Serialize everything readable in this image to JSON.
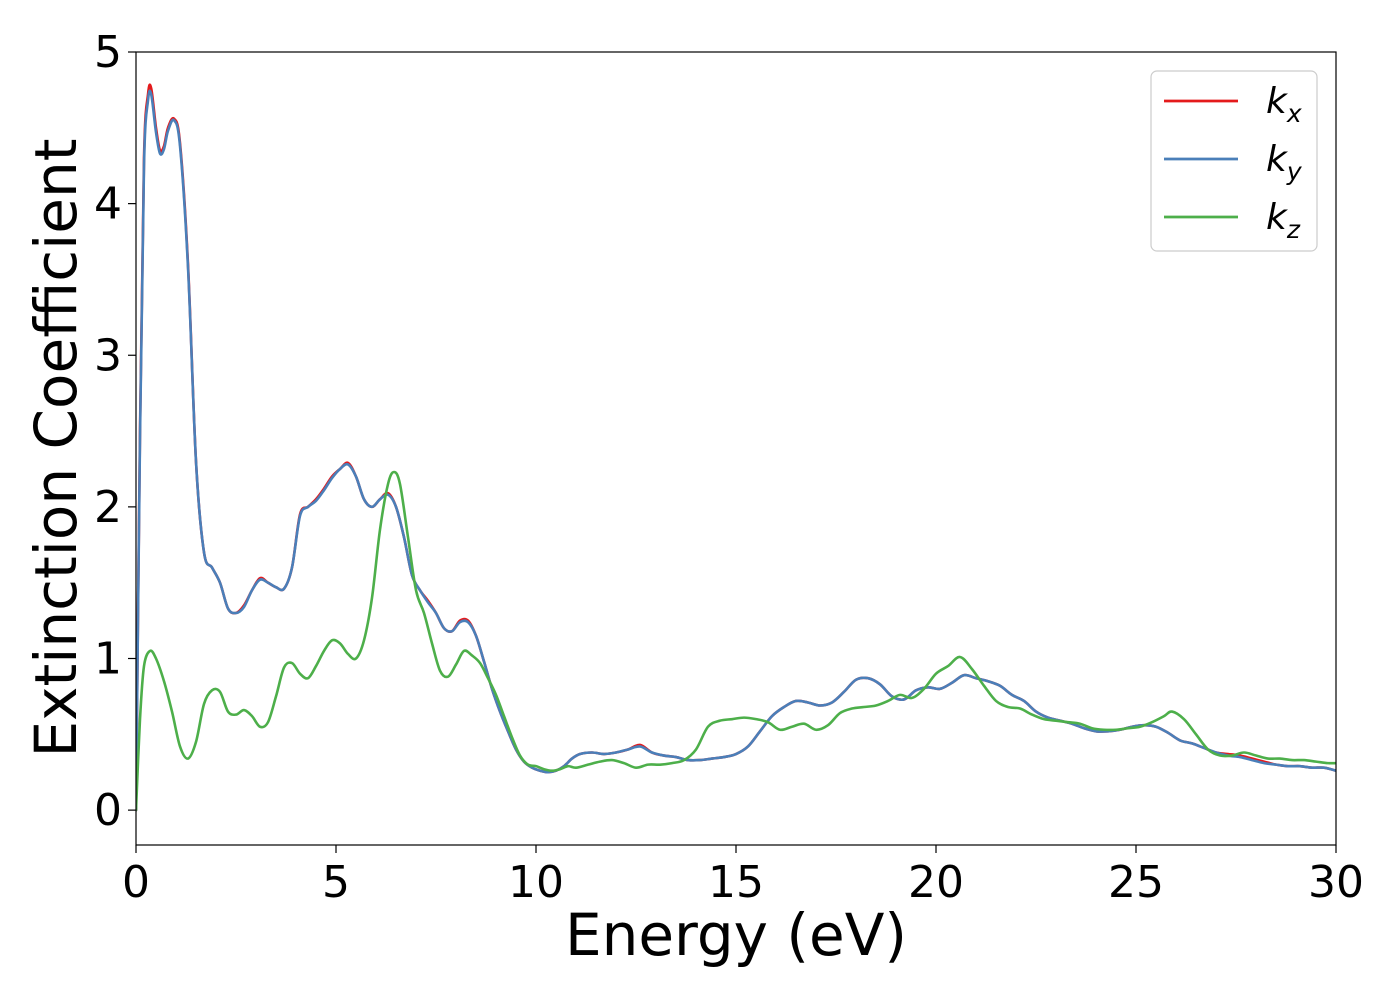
{
  "chart_data": {
    "type": "line",
    "xlabel": "Energy (eV)",
    "ylabel": "Extinction Coefficient",
    "xlim": [
      0,
      30
    ],
    "ylim": [
      -0.23,
      5.0
    ],
    "xticks": [
      0,
      5,
      10,
      15,
      20,
      25,
      30
    ],
    "yticks": [
      0,
      1,
      2,
      3,
      4,
      5
    ],
    "xtick_labels": [
      "0",
      "5",
      "10",
      "15",
      "20",
      "25",
      "30"
    ],
    "ytick_labels": [
      "0",
      "1",
      "2",
      "3",
      "4",
      "5"
    ],
    "grid": false,
    "legend_position": "top-right",
    "series": [
      {
        "name": "k_x",
        "label_base": "k",
        "label_sub": "x",
        "color": "#e41a1c",
        "x": [
          0,
          0.1,
          0.2,
          0.3,
          0.38,
          0.5,
          0.6,
          0.7,
          0.8,
          0.95,
          1.1,
          1.3,
          1.5,
          1.7,
          1.9,
          2.1,
          2.3,
          2.5,
          2.7,
          2.9,
          3.1,
          3.3,
          3.5,
          3.7,
          3.9,
          4.1,
          4.3,
          4.5,
          4.7,
          4.9,
          5.1,
          5.3,
          5.5,
          5.7,
          5.9,
          6.1,
          6.3,
          6.5,
          6.7,
          6.9,
          7.1,
          7.3,
          7.5,
          7.7,
          7.9,
          8.1,
          8.3,
          8.5,
          8.7,
          8.9,
          9.1,
          9.3,
          9.5,
          9.7,
          9.9,
          10.1,
          10.3,
          10.5,
          10.7,
          10.9,
          11.1,
          11.4,
          11.7,
          12.0,
          12.3,
          12.6,
          12.9,
          13.2,
          13.5,
          13.8,
          14.1,
          14.4,
          14.7,
          15.0,
          15.3,
          15.6,
          15.9,
          16.2,
          16.5,
          16.8,
          17.1,
          17.4,
          17.7,
          18.0,
          18.3,
          18.6,
          18.9,
          19.2,
          19.5,
          19.8,
          20.1,
          20.4,
          20.7,
          21.0,
          21.3,
          21.6,
          21.9,
          22.2,
          22.5,
          22.8,
          23.1,
          23.4,
          23.7,
          24.0,
          24.3,
          24.6,
          24.9,
          25.2,
          25.5,
          25.8,
          26.1,
          26.4,
          26.7,
          27.0,
          27.3,
          27.6,
          27.9,
          28.2,
          28.5,
          28.8,
          29.1,
          29.4,
          29.7,
          30.0
        ],
        "values": [
          0.0,
          2.5,
          4.3,
          4.72,
          4.76,
          4.5,
          4.35,
          4.38,
          4.5,
          4.56,
          4.4,
          3.6,
          2.3,
          1.7,
          1.6,
          1.5,
          1.33,
          1.3,
          1.35,
          1.45,
          1.53,
          1.5,
          1.47,
          1.46,
          1.6,
          1.95,
          2.0,
          2.05,
          2.12,
          2.2,
          2.25,
          2.29,
          2.2,
          2.05,
          2.0,
          2.05,
          2.09,
          2.0,
          1.8,
          1.55,
          1.45,
          1.38,
          1.3,
          1.2,
          1.18,
          1.25,
          1.25,
          1.15,
          0.98,
          0.8,
          0.65,
          0.52,
          0.4,
          0.32,
          0.28,
          0.26,
          0.25,
          0.26,
          0.29,
          0.34,
          0.37,
          0.38,
          0.37,
          0.38,
          0.4,
          0.43,
          0.38,
          0.36,
          0.35,
          0.33,
          0.33,
          0.34,
          0.35,
          0.37,
          0.42,
          0.52,
          0.62,
          0.68,
          0.72,
          0.71,
          0.69,
          0.71,
          0.78,
          0.86,
          0.87,
          0.83,
          0.75,
          0.73,
          0.79,
          0.81,
          0.8,
          0.84,
          0.89,
          0.87,
          0.85,
          0.82,
          0.76,
          0.72,
          0.65,
          0.61,
          0.59,
          0.57,
          0.54,
          0.52,
          0.52,
          0.53,
          0.55,
          0.56,
          0.55,
          0.51,
          0.46,
          0.44,
          0.41,
          0.38,
          0.37,
          0.36,
          0.34,
          0.32,
          0.3,
          0.29,
          0.29,
          0.28,
          0.28,
          0.26
        ]
      },
      {
        "name": "k_y",
        "label_base": "k",
        "label_sub": "y",
        "color": "#4a7fb9",
        "x": [
          0,
          0.1,
          0.2,
          0.3,
          0.38,
          0.5,
          0.6,
          0.7,
          0.8,
          0.95,
          1.1,
          1.3,
          1.5,
          1.7,
          1.9,
          2.1,
          2.3,
          2.5,
          2.7,
          2.9,
          3.1,
          3.3,
          3.5,
          3.7,
          3.9,
          4.1,
          4.3,
          4.5,
          4.7,
          4.9,
          5.1,
          5.3,
          5.5,
          5.7,
          5.9,
          6.1,
          6.3,
          6.5,
          6.7,
          6.9,
          7.1,
          7.3,
          7.5,
          7.7,
          7.9,
          8.1,
          8.3,
          8.5,
          8.7,
          8.9,
          9.1,
          9.3,
          9.5,
          9.7,
          9.9,
          10.1,
          10.3,
          10.5,
          10.7,
          10.9,
          11.1,
          11.4,
          11.7,
          12.0,
          12.3,
          12.6,
          12.9,
          13.2,
          13.5,
          13.8,
          14.1,
          14.4,
          14.7,
          15.0,
          15.3,
          15.6,
          15.9,
          16.2,
          16.5,
          16.8,
          17.1,
          17.4,
          17.7,
          18.0,
          18.3,
          18.6,
          18.9,
          19.2,
          19.5,
          19.8,
          20.1,
          20.4,
          20.7,
          21.0,
          21.3,
          21.6,
          21.9,
          22.2,
          22.5,
          22.8,
          23.1,
          23.4,
          23.7,
          24.0,
          24.3,
          24.6,
          24.9,
          25.2,
          25.5,
          25.8,
          26.1,
          26.4,
          26.7,
          27.0,
          27.3,
          27.6,
          27.9,
          28.2,
          28.5,
          28.8,
          29.1,
          29.4,
          29.7,
          30.0
        ],
        "values": [
          0.0,
          2.45,
          4.25,
          4.68,
          4.72,
          4.47,
          4.33,
          4.36,
          4.48,
          4.55,
          4.38,
          3.58,
          2.3,
          1.7,
          1.6,
          1.5,
          1.33,
          1.3,
          1.34,
          1.45,
          1.52,
          1.5,
          1.47,
          1.46,
          1.6,
          1.94,
          2.0,
          2.04,
          2.11,
          2.19,
          2.25,
          2.28,
          2.2,
          2.05,
          2.0,
          2.05,
          2.08,
          2.0,
          1.8,
          1.55,
          1.45,
          1.37,
          1.3,
          1.2,
          1.18,
          1.24,
          1.24,
          1.15,
          0.98,
          0.8,
          0.65,
          0.52,
          0.4,
          0.32,
          0.28,
          0.26,
          0.25,
          0.26,
          0.29,
          0.34,
          0.37,
          0.38,
          0.37,
          0.38,
          0.4,
          0.42,
          0.38,
          0.36,
          0.35,
          0.33,
          0.33,
          0.34,
          0.35,
          0.37,
          0.42,
          0.52,
          0.62,
          0.68,
          0.72,
          0.71,
          0.69,
          0.71,
          0.78,
          0.86,
          0.87,
          0.83,
          0.75,
          0.73,
          0.79,
          0.81,
          0.8,
          0.84,
          0.89,
          0.87,
          0.85,
          0.82,
          0.76,
          0.72,
          0.65,
          0.61,
          0.59,
          0.57,
          0.54,
          0.52,
          0.52,
          0.53,
          0.55,
          0.56,
          0.55,
          0.51,
          0.46,
          0.44,
          0.41,
          0.38,
          0.36,
          0.35,
          0.33,
          0.31,
          0.3,
          0.29,
          0.29,
          0.28,
          0.28,
          0.26
        ]
      },
      {
        "name": "k_z",
        "label_base": "k",
        "label_sub": "z",
        "color": "#4daf4a",
        "x": [
          0,
          0.1,
          0.2,
          0.35,
          0.5,
          0.7,
          0.9,
          1.1,
          1.3,
          1.5,
          1.7,
          1.9,
          2.1,
          2.3,
          2.5,
          2.7,
          2.9,
          3.1,
          3.3,
          3.5,
          3.7,
          3.9,
          4.1,
          4.3,
          4.5,
          4.7,
          4.9,
          5.1,
          5.3,
          5.5,
          5.7,
          5.9,
          6.1,
          6.3,
          6.45,
          6.6,
          6.8,
          7.0,
          7.2,
          7.4,
          7.6,
          7.8,
          8.0,
          8.2,
          8.4,
          8.6,
          8.8,
          9.0,
          9.2,
          9.4,
          9.6,
          9.8,
          10.0,
          10.2,
          10.4,
          10.6,
          10.8,
          11.0,
          11.3,
          11.6,
          11.9,
          12.2,
          12.5,
          12.8,
          13.1,
          13.4,
          13.7,
          14.0,
          14.3,
          14.6,
          14.9,
          15.2,
          15.5,
          15.8,
          16.1,
          16.4,
          16.7,
          17.0,
          17.3,
          17.6,
          17.9,
          18.2,
          18.5,
          18.8,
          19.1,
          19.4,
          19.7,
          20.0,
          20.3,
          20.6,
          20.9,
          21.2,
          21.5,
          21.8,
          22.1,
          22.4,
          22.7,
          23.0,
          23.3,
          23.6,
          23.9,
          24.2,
          24.5,
          24.8,
          25.1,
          25.4,
          25.7,
          25.9,
          26.2,
          26.5,
          26.8,
          27.1,
          27.4,
          27.7,
          28.0,
          28.3,
          28.6,
          28.9,
          29.2,
          29.5,
          29.8,
          30.0
        ],
        "values": [
          0.0,
          0.6,
          0.95,
          1.05,
          1.0,
          0.85,
          0.65,
          0.42,
          0.34,
          0.45,
          0.7,
          0.79,
          0.78,
          0.65,
          0.63,
          0.66,
          0.62,
          0.55,
          0.58,
          0.75,
          0.94,
          0.97,
          0.9,
          0.87,
          0.95,
          1.05,
          1.12,
          1.1,
          1.03,
          1.0,
          1.12,
          1.4,
          1.85,
          2.15,
          2.23,
          2.15,
          1.8,
          1.45,
          1.3,
          1.1,
          0.92,
          0.88,
          0.96,
          1.05,
          1.02,
          0.97,
          0.87,
          0.76,
          0.62,
          0.48,
          0.36,
          0.3,
          0.29,
          0.27,
          0.26,
          0.27,
          0.29,
          0.28,
          0.3,
          0.32,
          0.33,
          0.31,
          0.28,
          0.3,
          0.3,
          0.31,
          0.33,
          0.4,
          0.55,
          0.59,
          0.6,
          0.61,
          0.6,
          0.58,
          0.53,
          0.55,
          0.57,
          0.53,
          0.56,
          0.64,
          0.67,
          0.68,
          0.69,
          0.72,
          0.76,
          0.74,
          0.8,
          0.9,
          0.95,
          1.01,
          0.93,
          0.82,
          0.72,
          0.68,
          0.67,
          0.63,
          0.6,
          0.59,
          0.58,
          0.57,
          0.54,
          0.53,
          0.53,
          0.54,
          0.55,
          0.58,
          0.62,
          0.65,
          0.6,
          0.5,
          0.4,
          0.36,
          0.36,
          0.38,
          0.36,
          0.34,
          0.34,
          0.33,
          0.33,
          0.32,
          0.31,
          0.31
        ]
      }
    ]
  }
}
